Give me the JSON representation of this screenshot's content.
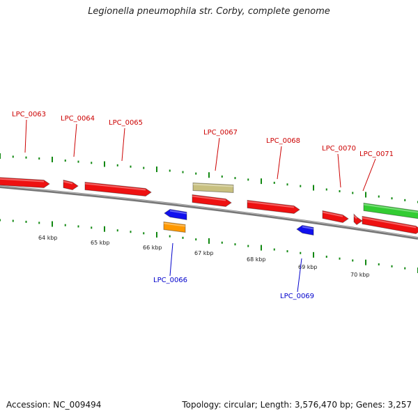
{
  "title": "Legionella pneumophila str. Corby, complete genome",
  "footer": {
    "accession": "Accession: NC_009494",
    "topology": "Topology: circular; Length: 3,576,470 bp; Genes: 3,257"
  },
  "colors": {
    "forward_gene": "#ee1111",
    "reverse_gene": "#1111ee",
    "trna": "#ff9900",
    "rrna": "#c8c080",
    "green_feature": "#33cc33",
    "backbone": "#777777",
    "tick": "#118811",
    "forward_label": "#cc0000",
    "reverse_label": "#0000cc"
  },
  "scale_labels": [
    "64 kbp",
    "65 kbp",
    "66 kbp",
    "67 kbp",
    "68 kbp",
    "69 kbp",
    "70 kbp"
  ],
  "gene_labels": {
    "forward": [
      "LPC_0063",
      "LPC_0064",
      "LPC_0065",
      "LPC_0067",
      "LPC_0068",
      "LPC_0070",
      "LPC_0071"
    ],
    "reverse": [
      "LPC_0066",
      "LPC_0069"
    ]
  }
}
